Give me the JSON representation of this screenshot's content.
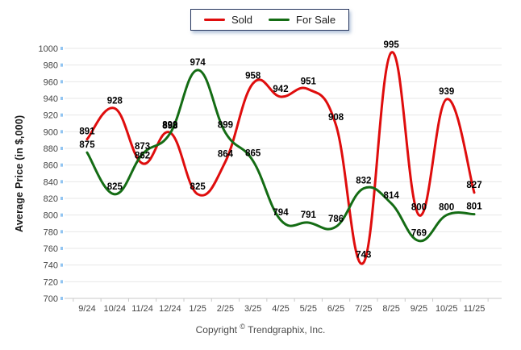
{
  "chart_data": {
    "type": "line",
    "title": "",
    "x_categories": [
      "9/24",
      "10/24",
      "11/24",
      "12/24",
      "1/25",
      "2/25",
      "3/25",
      "4/25",
      "5/25",
      "6/25",
      "7/25",
      "8/25",
      "9/25",
      "10/25",
      "11/25"
    ],
    "series": [
      {
        "name": "Sold",
        "color": "#df0d0d",
        "values": [
          891,
          928,
          862,
          899,
          825,
          864,
          958,
          942,
          951,
          908,
          743,
          995,
          800,
          939,
          827
        ]
      },
      {
        "name": "For Sale",
        "color": "#146c14",
        "values": [
          875,
          825,
          873,
          898,
          974,
          899,
          865,
          794,
          791,
          786,
          832,
          814,
          769,
          800,
          801
        ]
      }
    ],
    "xlabel": "",
    "ylabel": "Average Price (in $,000)",
    "ylim": [
      700,
      1000
    ],
    "ytick_step": 20,
    "grid": "horizontal",
    "legend_position": "top-center",
    "smoothing": "spline",
    "data_labels": true
  },
  "footer": {
    "copyright_prefix": "Copyright",
    "copyright_symbol": "©",
    "copyright_suffix": "Trendgraphix, Inc."
  },
  "style_colors": {
    "gridline": "#e7e7e7",
    "axis_line": "#c9c9c9",
    "y_tick_marker": "#92c5f2",
    "tick_text": "#454545",
    "data_label_text": "#000000"
  }
}
